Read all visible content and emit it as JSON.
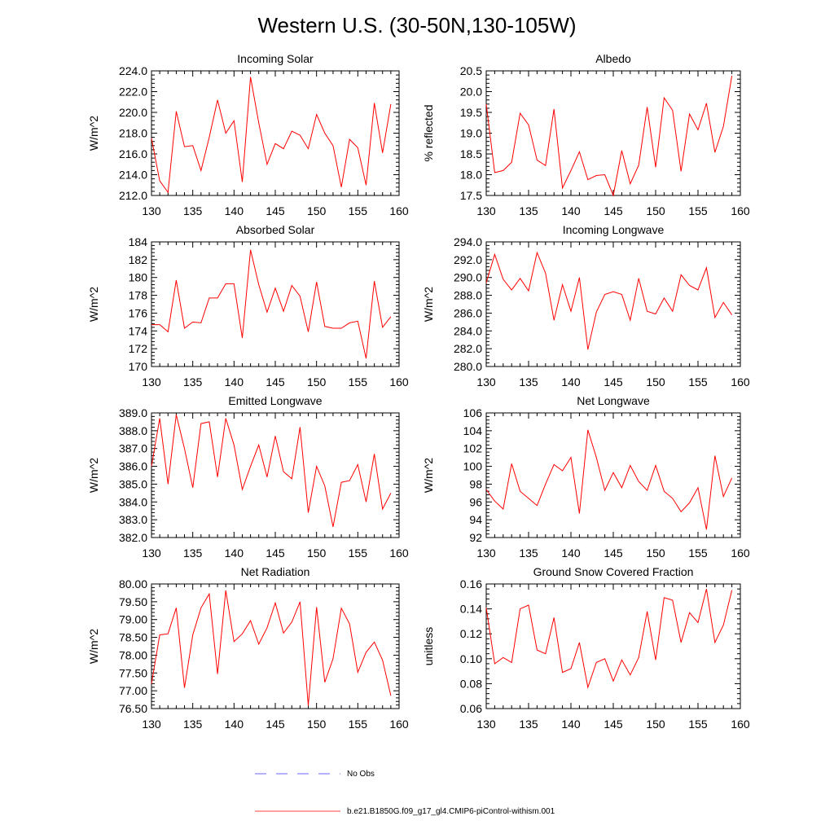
{
  "title": "Western U.S. (30-50N,130-105W)",
  "legend": [
    {
      "label": "No Obs",
      "color": "#3333ff",
      "dash": true
    },
    {
      "label": "b.e21.B1850G.f09_g17_gl4.CMIP6-piControl-withism.001",
      "color": "#ff0000",
      "dash": false
    }
  ],
  "chart_data": [
    {
      "type": "line",
      "title": "Incoming Solar",
      "ylabel": "W/m^2",
      "xlim": [
        130,
        160
      ],
      "ylim": [
        212,
        224
      ],
      "yticks": [
        "212.0",
        "214.0",
        "216.0",
        "218.0",
        "220.0",
        "222.0",
        "224.0"
      ],
      "xticks": [
        "130",
        "135",
        "140",
        "145",
        "150",
        "155",
        "160"
      ],
      "series": [
        {
          "color": "#ff0000",
          "x": [
            130,
            131,
            132,
            133,
            134,
            135,
            136,
            137,
            138,
            139,
            140,
            141,
            142,
            143,
            144,
            145,
            146,
            147,
            148,
            149,
            150,
            151,
            152,
            153,
            154,
            155,
            156,
            157,
            158,
            159
          ],
          "values": [
            217.5,
            213.4,
            212.3,
            220.1,
            216.7,
            216.8,
            214.4,
            217.6,
            221.2,
            218.0,
            219.2,
            213.3,
            223.4,
            219.0,
            215.0,
            217.0,
            216.5,
            218.2,
            217.8,
            216.5,
            219.8,
            218.0,
            216.8,
            212.8,
            217.4,
            216.6,
            213.0,
            220.9,
            216.1,
            220.8
          ]
        }
      ]
    },
    {
      "type": "line",
      "title": "Albedo",
      "ylabel": "% reflected",
      "xlim": [
        130,
        160
      ],
      "ylim": [
        17.5,
        20.5
      ],
      "yticks": [
        "17.5",
        "18.0",
        "18.5",
        "19.0",
        "19.5",
        "20.0",
        "20.5"
      ],
      "xticks": [
        "130",
        "135",
        "140",
        "145",
        "150",
        "155",
        "160"
      ],
      "series": [
        {
          "color": "#ff0000",
          "x": [
            130,
            131,
            132,
            133,
            134,
            135,
            136,
            137,
            138,
            139,
            140,
            141,
            142,
            143,
            144,
            145,
            146,
            147,
            148,
            149,
            150,
            151,
            152,
            153,
            154,
            155,
            156,
            157,
            158,
            159
          ],
          "values": [
            19.7,
            18.05,
            18.1,
            18.3,
            19.48,
            19.2,
            18.35,
            18.22,
            19.58,
            17.68,
            18.1,
            18.55,
            17.88,
            17.98,
            18.0,
            17.5,
            18.58,
            17.78,
            18.23,
            19.63,
            18.18,
            19.85,
            19.55,
            18.08,
            19.46,
            19.08,
            19.72,
            18.54,
            19.16,
            20.38
          ]
        }
      ]
    },
    {
      "type": "line",
      "title": "Absorbed Solar",
      "ylabel": "W/m^2",
      "xlim": [
        130,
        160
      ],
      "ylim": [
        170,
        184
      ],
      "yticks": [
        "170",
        "172",
        "174",
        "176",
        "178",
        "180",
        "182",
        "184"
      ],
      "xticks": [
        "130",
        "135",
        "140",
        "145",
        "150",
        "155",
        "160"
      ],
      "series": [
        {
          "color": "#ff0000",
          "x": [
            130,
            131,
            132,
            133,
            134,
            135,
            136,
            137,
            138,
            139,
            140,
            141,
            142,
            143,
            144,
            145,
            146,
            147,
            148,
            149,
            150,
            151,
            152,
            153,
            154,
            155,
            156,
            157,
            158,
            159
          ],
          "values": [
            174.7,
            174.7,
            173.9,
            179.7,
            174.3,
            175.0,
            174.9,
            177.7,
            177.7,
            179.3,
            179.3,
            173.2,
            183.1,
            179.2,
            176.1,
            178.8,
            176.2,
            179.1,
            177.9,
            173.9,
            179.5,
            174.5,
            174.3,
            174.3,
            174.9,
            175.1,
            170.9,
            179.6,
            174.4,
            175.6
          ]
        }
      ]
    },
    {
      "type": "line",
      "title": "Incoming Longwave",
      "ylabel": "W/m^2",
      "xlim": [
        130,
        160
      ],
      "ylim": [
        280,
        294
      ],
      "yticks": [
        "280.0",
        "282.0",
        "284.0",
        "286.0",
        "288.0",
        "290.0",
        "292.0",
        "294.0"
      ],
      "xticks": [
        "130",
        "135",
        "140",
        "145",
        "150",
        "155",
        "160"
      ],
      "series": [
        {
          "color": "#ff0000",
          "x": [
            130,
            131,
            132,
            133,
            134,
            135,
            136,
            137,
            138,
            139,
            140,
            141,
            142,
            143,
            144,
            145,
            146,
            147,
            148,
            149,
            150,
            151,
            152,
            153,
            154,
            155,
            156,
            157,
            158,
            159
          ],
          "values": [
            289.4,
            292.6,
            289.8,
            288.6,
            289.9,
            288.5,
            292.8,
            290.5,
            285.2,
            289.2,
            286.2,
            290.0,
            281.9,
            286.1,
            288.1,
            288.4,
            288.1,
            285.2,
            289.9,
            286.2,
            285.9,
            287.7,
            286.2,
            290.3,
            289.1,
            288.6,
            291.1,
            285.5,
            287.2,
            285.8
          ]
        }
      ]
    },
    {
      "type": "line",
      "title": "Emitted Longwave",
      "ylabel": "W/m^2",
      "xlim": [
        130,
        160
      ],
      "ylim": [
        382,
        389
      ],
      "yticks": [
        "382.0",
        "383.0",
        "384.0",
        "385.0",
        "386.0",
        "387.0",
        "388.0",
        "389.0"
      ],
      "xticks": [
        "130",
        "135",
        "140",
        "145",
        "150",
        "155",
        "160"
      ],
      "series": [
        {
          "color": "#ff0000",
          "x": [
            130,
            131,
            132,
            133,
            134,
            135,
            136,
            137,
            138,
            139,
            140,
            141,
            142,
            143,
            144,
            145,
            146,
            147,
            148,
            149,
            150,
            151,
            152,
            153,
            154,
            155,
            156,
            157,
            158,
            159
          ],
          "values": [
            386.0,
            388.7,
            385.0,
            388.9,
            387.0,
            384.8,
            388.4,
            388.5,
            385.4,
            388.7,
            387.2,
            384.7,
            386.0,
            387.2,
            385.4,
            387.7,
            385.7,
            385.3,
            388.2,
            383.4,
            386.0,
            384.9,
            382.6,
            385.1,
            385.2,
            386.1,
            384.0,
            386.7,
            383.6,
            384.5
          ]
        }
      ]
    },
    {
      "type": "line",
      "title": "Net Longwave",
      "ylabel": "W/m^2",
      "xlim": [
        130,
        160
      ],
      "ylim": [
        92,
        106
      ],
      "yticks": [
        "92",
        "94",
        "96",
        "98",
        "100",
        "102",
        "104",
        "106"
      ],
      "xticks": [
        "130",
        "135",
        "140",
        "145",
        "150",
        "155",
        "160"
      ],
      "series": [
        {
          "color": "#ff0000",
          "x": [
            130,
            131,
            132,
            133,
            134,
            135,
            136,
            137,
            138,
            139,
            140,
            141,
            142,
            143,
            144,
            145,
            146,
            147,
            148,
            149,
            150,
            151,
            152,
            153,
            154,
            155,
            156,
            157,
            158,
            159
          ],
          "values": [
            97.4,
            96.1,
            95.2,
            100.3,
            97.2,
            96.4,
            95.6,
            98.0,
            100.2,
            99.5,
            101.0,
            94.7,
            104.1,
            101.0,
            97.3,
            99.3,
            97.6,
            100.1,
            98.3,
            97.3,
            100.1,
            97.2,
            96.4,
            94.9,
            95.9,
            97.6,
            92.9,
            101.2,
            96.6,
            98.7
          ]
        }
      ]
    },
    {
      "type": "line",
      "title": "Net Radiation",
      "ylabel": "W/m^2",
      "xlim": [
        130,
        160
      ],
      "ylim": [
        76.5,
        80.0
      ],
      "yticks": [
        "76.50",
        "77.00",
        "77.50",
        "78.00",
        "78.50",
        "79.00",
        "79.50",
        "80.00"
      ],
      "xticks": [
        "130",
        "135",
        "140",
        "145",
        "150",
        "155",
        "160"
      ],
      "series": [
        {
          "color": "#ff0000",
          "x": [
            130,
            131,
            132,
            133,
            134,
            135,
            136,
            137,
            138,
            139,
            140,
            141,
            142,
            143,
            144,
            145,
            146,
            147,
            148,
            149,
            150,
            151,
            152,
            153,
            154,
            155,
            156,
            157,
            158,
            159
          ],
          "values": [
            77.2,
            78.57,
            78.6,
            79.33,
            77.08,
            78.57,
            79.33,
            79.72,
            77.47,
            79.82,
            78.38,
            78.6,
            78.97,
            78.31,
            78.77,
            79.47,
            78.62,
            78.93,
            79.5,
            76.58,
            79.35,
            77.24,
            77.9,
            79.32,
            78.88,
            77.52,
            78.08,
            78.37,
            77.86,
            76.86
          ]
        }
      ]
    },
    {
      "type": "line",
      "title": "Ground Snow Covered Fraction",
      "ylabel": "unitless",
      "xlim": [
        130,
        160
      ],
      "ylim": [
        0.06,
        0.16
      ],
      "yticks": [
        "0.06",
        "0.08",
        "0.10",
        "0.12",
        "0.14",
        "0.16"
      ],
      "xticks": [
        "130",
        "135",
        "140",
        "145",
        "150",
        "155",
        "160"
      ],
      "series": [
        {
          "color": "#ff0000",
          "x": [
            130,
            131,
            132,
            133,
            134,
            135,
            136,
            137,
            138,
            139,
            140,
            141,
            142,
            143,
            144,
            145,
            146,
            147,
            148,
            149,
            150,
            151,
            152,
            153,
            154,
            155,
            156,
            157,
            158,
            159
          ],
          "values": [
            0.141,
            0.096,
            0.101,
            0.097,
            0.14,
            0.143,
            0.107,
            0.104,
            0.133,
            0.089,
            0.092,
            0.113,
            0.077,
            0.097,
            0.1,
            0.082,
            0.099,
            0.087,
            0.101,
            0.138,
            0.099,
            0.149,
            0.147,
            0.113,
            0.137,
            0.129,
            0.156,
            0.113,
            0.127,
            0.155
          ]
        }
      ]
    }
  ]
}
